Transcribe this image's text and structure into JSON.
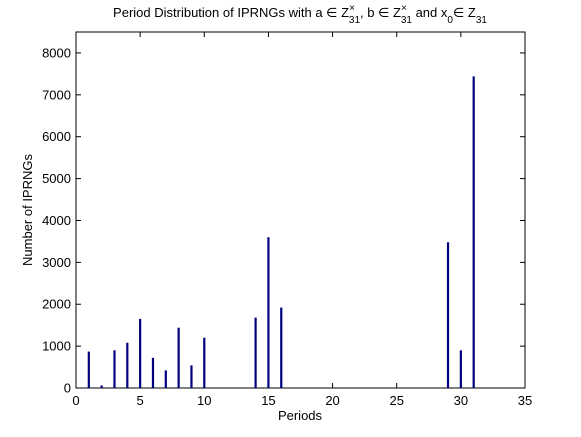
{
  "chart_data": {
    "type": "bar",
    "title": {
      "prefix": "Period Distribution of IPRNGs with a ∈ Z",
      "a_sup": "×",
      "a_sub": "31",
      "middle": ", b ∈ Z",
      "b_sup": "×",
      "b_sub": "31",
      "and": " and x",
      "x_sub": "0",
      "suffix": "∈ Z",
      "z_sub": "31"
    },
    "xlabel": "Periods",
    "ylabel": "Number of IPRNGs",
    "xlim": [
      0,
      35
    ],
    "ylim": [
      0,
      8500
    ],
    "xticks": [
      0,
      5,
      10,
      15,
      20,
      25,
      30,
      35
    ],
    "yticks": [
      0,
      1000,
      2000,
      3000,
      4000,
      5000,
      6000,
      7000,
      8000
    ],
    "grid": false,
    "bar_color": "#000080",
    "series": [
      {
        "x": [
          1,
          2,
          3,
          4,
          5,
          6,
          7,
          8,
          9,
          10,
          14,
          15,
          16,
          29,
          30,
          31
        ],
        "values": [
          870,
          60,
          900,
          1080,
          1650,
          720,
          420,
          1440,
          540,
          1200,
          1680,
          3600,
          1920,
          3480,
          900,
          7440
        ]
      }
    ]
  }
}
